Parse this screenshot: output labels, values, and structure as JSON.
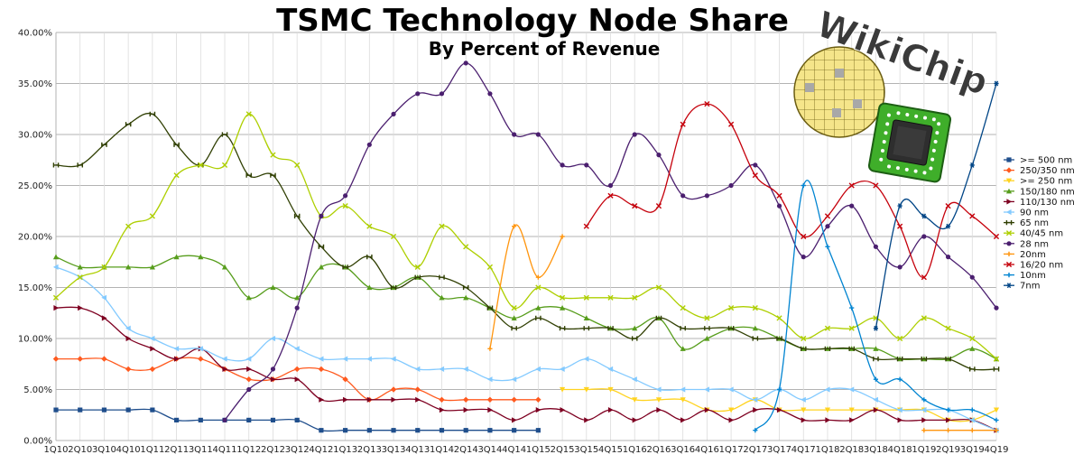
{
  "chart_data": {
    "type": "line",
    "title": "TSMC Technology Node Share",
    "subtitle": "By Percent of Revenue",
    "xlabel": "",
    "ylabel": "",
    "ylim": [
      0,
      40
    ],
    "y_ticks": [
      "0.00%",
      "5.00%",
      "10.00%",
      "15.00%",
      "20.00%",
      "25.00%",
      "30.00%",
      "35.00%",
      "40.00%"
    ],
    "grid": true,
    "legend_position": "right",
    "categories": [
      "1Q10",
      "2Q10",
      "3Q10",
      "4Q10",
      "1Q11",
      "2Q11",
      "3Q11",
      "4Q11",
      "1Q12",
      "2Q12",
      "3Q12",
      "4Q12",
      "1Q13",
      "2Q13",
      "3Q13",
      "4Q13",
      "1Q14",
      "2Q14",
      "3Q14",
      "4Q14",
      "1Q15",
      "2Q15",
      "3Q15",
      "4Q15",
      "1Q16",
      "2Q16",
      "3Q16",
      "4Q16",
      "1Q17",
      "2Q17",
      "3Q17",
      "4Q17",
      "1Q18",
      "2Q18",
      "3Q18",
      "4Q18",
      "1Q19",
      "2Q19",
      "3Q19",
      "4Q19"
    ],
    "series": [
      {
        "name": ">= 500 nm",
        "color": "#1f4e8c",
        "marker": "square",
        "values": [
          3,
          3,
          3,
          3,
          3,
          2,
          2,
          2,
          2,
          2,
          2,
          1,
          1,
          1,
          1,
          1,
          1,
          1,
          1,
          1,
          1,
          null,
          null,
          null,
          null,
          null,
          null,
          null,
          null,
          null,
          null,
          null,
          null,
          null,
          null,
          null,
          null,
          null,
          null,
          null
        ]
      },
      {
        "name": "250/350 nm",
        "color": "#ff5a1f",
        "marker": "diamond",
        "values": [
          8,
          8,
          8,
          7,
          7,
          8,
          8,
          7,
          6,
          6,
          7,
          7,
          6,
          4,
          5,
          5,
          4,
          4,
          4,
          4,
          4,
          null,
          null,
          null,
          null,
          null,
          null,
          null,
          null,
          null,
          null,
          null,
          null,
          null,
          null,
          null,
          null,
          null,
          null,
          null
        ]
      },
      {
        "name": ">= 250 nm",
        "color": "#ffd320",
        "marker": "triangle-down",
        "values": [
          null,
          null,
          null,
          null,
          null,
          null,
          null,
          null,
          null,
          null,
          null,
          null,
          null,
          null,
          null,
          null,
          null,
          null,
          null,
          null,
          null,
          5,
          5,
          5,
          4,
          4,
          4,
          3,
          3,
          4,
          3,
          3,
          3,
          3,
          3,
          3,
          3,
          2,
          2,
          3
        ]
      },
      {
        "name": "150/180 nm",
        "color": "#579d1c",
        "marker": "triangle",
        "values": [
          18,
          17,
          17,
          17,
          17,
          18,
          18,
          17,
          14,
          15,
          14,
          17,
          17,
          15,
          15,
          16,
          14,
          14,
          13,
          12,
          13,
          13,
          12,
          11,
          11,
          12,
          9,
          10,
          11,
          11,
          10,
          9,
          9,
          9,
          9,
          8,
          8,
          8,
          9,
          8
        ]
      },
      {
        "name": "110/130 nm",
        "color": "#7e0021",
        "marker": "triangle-right",
        "values": [
          13,
          13,
          12,
          10,
          9,
          8,
          9,
          7,
          7,
          6,
          6,
          4,
          4,
          4,
          4,
          4,
          3,
          3,
          3,
          2,
          3,
          3,
          2,
          3,
          2,
          3,
          2,
          3,
          2,
          3,
          3,
          2,
          2,
          2,
          3,
          2,
          2,
          2,
          2,
          1
        ]
      },
      {
        "name": "90 nm",
        "color": "#83caff",
        "marker": "triangle-left",
        "values": [
          17,
          16,
          14,
          11,
          10,
          9,
          9,
          8,
          8,
          10,
          9,
          8,
          8,
          8,
          8,
          7,
          7,
          7,
          6,
          6,
          7,
          7,
          8,
          7,
          6,
          5,
          5,
          5,
          5,
          4,
          5,
          4,
          5,
          5,
          4,
          3,
          3,
          3,
          2,
          1
        ]
      },
      {
        "name": "65 nm",
        "color": "#314004",
        "marker": "cross",
        "values": [
          27,
          27,
          29,
          31,
          32,
          29,
          27,
          30,
          26,
          26,
          22,
          19,
          17,
          18,
          15,
          16,
          16,
          15,
          13,
          11,
          12,
          11,
          11,
          11,
          10,
          12,
          11,
          11,
          11,
          10,
          10,
          9,
          9,
          9,
          8,
          8,
          8,
          8,
          7,
          7
        ]
      },
      {
        "name": "40/45 nm",
        "color": "#aecf00",
        "marker": "x",
        "values": [
          14,
          16,
          17,
          21,
          22,
          26,
          27,
          27,
          32,
          28,
          27,
          22,
          23,
          21,
          20,
          17,
          21,
          19,
          17,
          13,
          15,
          14,
          14,
          14,
          14,
          15,
          13,
          12,
          13,
          13,
          12,
          10,
          11,
          11,
          12,
          10,
          12,
          11,
          10,
          8
        ]
      },
      {
        "name": "28 nm",
        "color": "#4b1f6f",
        "marker": "circle",
        "values": [
          null,
          null,
          null,
          null,
          null,
          null,
          null,
          2,
          5,
          7,
          13,
          22,
          24,
          29,
          32,
          34,
          34,
          37,
          34,
          30,
          30,
          27,
          27,
          25,
          30,
          28,
          24,
          24,
          25,
          27,
          23,
          18,
          21,
          23,
          19,
          17,
          20,
          18,
          16,
          13
        ]
      },
      {
        "name": "20nm",
        "color": "#ff950e",
        "marker": "plus",
        "values": [
          null,
          null,
          null,
          null,
          null,
          null,
          null,
          null,
          null,
          null,
          null,
          null,
          null,
          null,
          null,
          null,
          null,
          null,
          9,
          21,
          16,
          20,
          null,
          null,
          null,
          null,
          null,
          null,
          null,
          null,
          null,
          null,
          null,
          null,
          null,
          null,
          1,
          1,
          1,
          1
        ]
      },
      {
        "name": "16/20 nm",
        "color": "#c5000b",
        "marker": "x",
        "values": [
          null,
          null,
          null,
          null,
          null,
          null,
          null,
          null,
          null,
          null,
          null,
          null,
          null,
          null,
          null,
          null,
          null,
          null,
          null,
          null,
          null,
          null,
          21,
          24,
          23,
          23,
          31,
          33,
          31,
          26,
          24,
          20,
          22,
          25,
          25,
          21,
          16,
          23,
          22,
          20
        ]
      },
      {
        "name": "10nm",
        "color": "#0084d1",
        "marker": "plus",
        "values": [
          null,
          null,
          null,
          null,
          null,
          null,
          null,
          null,
          null,
          null,
          null,
          null,
          null,
          null,
          null,
          null,
          null,
          null,
          null,
          null,
          null,
          null,
          null,
          null,
          null,
          null,
          null,
          null,
          null,
          1,
          5,
          25,
          19,
          13,
          6,
          6,
          4,
          3,
          3,
          2
        ]
      },
      {
        "name": "7nm",
        "color": "#004586",
        "marker": "asterisk",
        "values": [
          null,
          null,
          null,
          null,
          null,
          null,
          null,
          null,
          null,
          null,
          null,
          null,
          null,
          null,
          null,
          null,
          null,
          null,
          null,
          null,
          null,
          null,
          null,
          null,
          null,
          null,
          null,
          null,
          null,
          null,
          null,
          null,
          null,
          null,
          11,
          23,
          22,
          21,
          27,
          35
        ]
      }
    ]
  },
  "logo": {
    "text": "WikiChip"
  }
}
